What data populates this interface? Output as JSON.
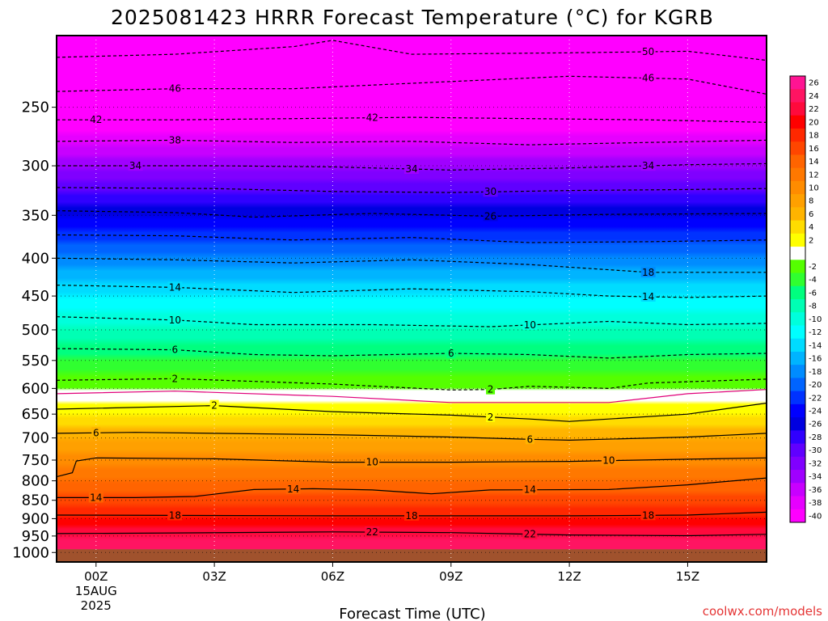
{
  "chart_data": {
    "type": "heatmap",
    "title": "2025081423 HRRR Forecast Temperature (°C) for KGRB",
    "xlabel": "Forecast Time (UTC)",
    "ylabel": "",
    "credit": "coolwx.com/models",
    "y_scale": "log-pressure",
    "ylim": [
      1030,
      200
    ],
    "y_ticks": [
      "250",
      "300",
      "350",
      "400",
      "450",
      "500",
      "550",
      "600",
      "650",
      "700",
      "750",
      "800",
      "850",
      "900",
      "950",
      "1000"
    ],
    "x_range_hours": [
      -1,
      17
    ],
    "x_ticks": [
      {
        "hour": 0,
        "label": "00Z",
        "sub": [
          "15AUG",
          "2025"
        ]
      },
      {
        "hour": 3,
        "label": "03Z",
        "sub": []
      },
      {
        "hour": 6,
        "label": "06Z",
        "sub": []
      },
      {
        "hour": 9,
        "label": "09Z",
        "sub": []
      },
      {
        "hour": 12,
        "label": "12Z",
        "sub": []
      },
      {
        "hour": 15,
        "label": "15Z",
        "sub": []
      }
    ],
    "ground_level_hpa": 990,
    "ground_color": "#a0522d",
    "grid": true,
    "colorbar": {
      "labels": [
        "26",
        "24",
        "22",
        "20",
        "18",
        "16",
        "14",
        "12",
        "10",
        "8",
        "6",
        "4",
        "2",
        "-2",
        "-4",
        "-6",
        "-8",
        "-10",
        "-12",
        "-14",
        "-16",
        "-18",
        "-20",
        "-22",
        "-24",
        "-26",
        "-28",
        "-30",
        "-32",
        "-34",
        "-36",
        "-38",
        "-40"
      ],
      "colors": [
        "#ff1493",
        "#ff1462",
        "#ff0a3c",
        "#ff0000",
        "#ff2800",
        "#ff4600",
        "#ff6400",
        "#ff7800",
        "#ff8c00",
        "#ffa000",
        "#ffb400",
        "#ffdc00",
        "#ffff00",
        "#ffffff",
        "#55ff00",
        "#30ff30",
        "#00ff7f",
        "#00ffb4",
        "#00ffdc",
        "#00ffff",
        "#00dcff",
        "#00b4ff",
        "#008cff",
        "#0064ff",
        "#0032ff",
        "#0000ff",
        "#0000e0",
        "#3000ff",
        "#6000ff",
        "#8000ff",
        "#a000ff",
        "#c800ff",
        "#e600ff",
        "#ff00ff"
      ]
    },
    "contours": [
      {
        "value": 22,
        "label": "22",
        "style": "solid",
        "points": [
          [
            -1,
            943
          ],
          [
            2,
            941
          ],
          [
            6,
            938
          ],
          [
            9,
            940
          ],
          [
            12,
            947
          ],
          [
            15,
            949
          ],
          [
            17,
            945
          ]
        ],
        "label_hours": [
          7,
          11
        ]
      },
      {
        "value": 18,
        "label": "18",
        "style": "solid",
        "points": [
          [
            -1,
            890
          ],
          [
            2,
            891
          ],
          [
            6,
            892
          ],
          [
            9,
            892
          ],
          [
            12,
            892
          ],
          [
            15,
            890
          ],
          [
            17,
            882
          ]
        ],
        "label_hours": [
          2,
          8,
          14
        ]
      },
      {
        "value": 14,
        "label": "14",
        "style": "solid",
        "points": [
          [
            -1,
            843
          ],
          [
            1,
            843
          ],
          [
            2.5,
            840
          ],
          [
            4,
            822
          ],
          [
            5.5,
            820
          ],
          [
            7,
            823
          ],
          [
            8.5,
            833
          ],
          [
            10,
            823
          ],
          [
            13,
            822
          ],
          [
            15,
            810
          ],
          [
            17,
            793
          ]
        ],
        "label_hours": [
          0,
          5,
          11
        ]
      },
      {
        "value": 10,
        "label": "10",
        "style": "solid",
        "points": [
          [
            -1,
            790
          ],
          [
            -0.6,
            780
          ],
          [
            -0.5,
            752
          ],
          [
            0,
            745
          ],
          [
            3,
            747
          ],
          [
            6,
            755
          ],
          [
            9,
            755
          ],
          [
            12,
            753
          ],
          [
            15,
            748
          ],
          [
            17,
            745
          ]
        ],
        "label_hours": [
          7,
          13
        ]
      },
      {
        "value": 6,
        "label": "6",
        "style": "solid",
        "points": [
          [
            -1,
            690
          ],
          [
            1,
            688
          ],
          [
            3,
            690
          ],
          [
            6,
            693
          ],
          [
            9,
            698
          ],
          [
            11,
            703
          ],
          [
            12,
            705
          ],
          [
            15,
            698
          ],
          [
            17,
            690
          ]
        ],
        "label_hours": [
          0,
          11
        ]
      },
      {
        "value": 2,
        "label": "2",
        "style": "solid",
        "points": [
          [
            -1,
            640
          ],
          [
            3,
            633
          ],
          [
            6,
            645
          ],
          [
            9,
            652
          ],
          [
            11,
            660
          ],
          [
            12,
            665
          ],
          [
            15,
            650
          ],
          [
            17,
            628
          ]
        ],
        "label_hours": [
          3,
          10
        ]
      },
      {
        "value": 0,
        "label": "",
        "style": "magenta",
        "points": [
          [
            -1,
            610
          ],
          [
            2,
            605
          ],
          [
            6,
            615
          ],
          [
            9,
            627
          ],
          [
            11,
            627
          ],
          [
            13,
            627
          ],
          [
            15,
            610
          ],
          [
            17,
            602
          ]
        ],
        "label_hours": []
      },
      {
        "value": -2,
        "label": "2",
        "style": "dashed",
        "points": [
          [
            -1,
            585
          ],
          [
            2,
            582
          ],
          [
            6,
            592
          ],
          [
            9,
            603
          ],
          [
            10,
            602
          ],
          [
            11,
            596
          ],
          [
            12,
            598
          ],
          [
            13,
            600
          ],
          [
            14,
            590
          ],
          [
            17,
            583
          ]
        ],
        "label_hours": [
          2,
          10
        ]
      },
      {
        "value": -6,
        "label": "6",
        "style": "dashed",
        "points": [
          [
            -1,
            530
          ],
          [
            2,
            532
          ],
          [
            4,
            540
          ],
          [
            6,
            542
          ],
          [
            9,
            538
          ],
          [
            11,
            540
          ],
          [
            13,
            546
          ],
          [
            15,
            540
          ],
          [
            17,
            538
          ]
        ],
        "label_hours": [
          2,
          9
        ]
      },
      {
        "value": -10,
        "label": "10",
        "style": "dashed",
        "points": [
          [
            -1,
            480
          ],
          [
            2,
            485
          ],
          [
            4,
            492
          ],
          [
            7,
            492
          ],
          [
            10,
            495
          ],
          [
            13,
            487
          ],
          [
            15,
            492
          ],
          [
            17,
            490
          ]
        ],
        "label_hours": [
          2,
          11
        ]
      },
      {
        "value": -14,
        "label": "14",
        "style": "dashed",
        "points": [
          [
            -1,
            435
          ],
          [
            2,
            438
          ],
          [
            5,
            445
          ],
          [
            8,
            440
          ],
          [
            11,
            444
          ],
          [
            13,
            450
          ],
          [
            15,
            452
          ],
          [
            17,
            450
          ]
        ],
        "label_hours": [
          2,
          14
        ]
      },
      {
        "value": -18,
        "label": "18",
        "style": "dashed",
        "points": [
          [
            -1,
            400
          ],
          [
            2,
            402
          ],
          [
            5,
            406
          ],
          [
            8,
            402
          ],
          [
            11,
            408
          ],
          [
            14,
            418
          ],
          [
            17,
            418
          ]
        ],
        "label_hours": [
          14
        ]
      },
      {
        "value": -22,
        "label": "",
        "style": "dashed",
        "points": [
          [
            -1,
            372
          ],
          [
            2,
            373
          ],
          [
            5,
            378
          ],
          [
            8,
            375
          ],
          [
            11,
            381
          ],
          [
            14,
            380
          ],
          [
            17,
            378
          ]
        ],
        "label_hours": []
      },
      {
        "value": -26,
        "label": "26",
        "style": "dashed",
        "points": [
          [
            -1,
            345
          ],
          [
            2,
            347
          ],
          [
            4,
            352
          ],
          [
            7,
            348
          ],
          [
            10,
            351
          ],
          [
            13,
            349
          ],
          [
            17,
            348
          ]
        ],
        "label_hours": [
          10
        ]
      },
      {
        "value": -30,
        "label": "30",
        "style": "dashed",
        "points": [
          [
            -1,
            321
          ],
          [
            3,
            322
          ],
          [
            6,
            325
          ],
          [
            9,
            326
          ],
          [
            12,
            324
          ],
          [
            15,
            323
          ],
          [
            17,
            322
          ]
        ],
        "label_hours": [
          10
        ]
      },
      {
        "value": -34,
        "label": "34",
        "style": "dashed",
        "points": [
          [
            -1,
            300
          ],
          [
            3,
            300
          ],
          [
            6,
            301
          ],
          [
            9,
            304
          ],
          [
            12,
            302
          ],
          [
            15,
            299
          ],
          [
            17,
            298
          ]
        ],
        "label_hours": [
          1,
          8,
          14
        ]
      },
      {
        "value": -38,
        "label": "38",
        "style": "dashed",
        "points": [
          [
            -1,
            278
          ],
          [
            2,
            277
          ],
          [
            5,
            279
          ],
          [
            8,
            278
          ],
          [
            11,
            281
          ],
          [
            14,
            279
          ],
          [
            17,
            277
          ]
        ],
        "label_hours": [
          2
        ]
      },
      {
        "value": -42,
        "label": "42",
        "style": "dashed",
        "points": [
          [
            -1,
            260
          ],
          [
            2,
            260
          ],
          [
            5,
            259
          ],
          [
            8,
            258
          ],
          [
            11,
            259
          ],
          [
            14,
            260
          ],
          [
            17,
            262
          ]
        ],
        "label_hours": [
          0,
          7
        ]
      },
      {
        "value": -46,
        "label": "46",
        "style": "dashed",
        "points": [
          [
            -1,
            238
          ],
          [
            2,
            236
          ],
          [
            5,
            236
          ],
          [
            8,
            232
          ],
          [
            12,
            227
          ],
          [
            15,
            229
          ],
          [
            17,
            240
          ]
        ],
        "label_hours": [
          2,
          14
        ]
      },
      {
        "value": -50,
        "label": "50",
        "style": "dashed",
        "points": [
          [
            -1,
            214
          ],
          [
            2,
            212
          ],
          [
            5,
            207
          ],
          [
            6,
            203
          ],
          [
            8,
            212
          ],
          [
            12,
            211
          ],
          [
            15,
            210
          ],
          [
            17,
            216
          ]
        ],
        "label_hours": [
          14
        ]
      }
    ]
  }
}
